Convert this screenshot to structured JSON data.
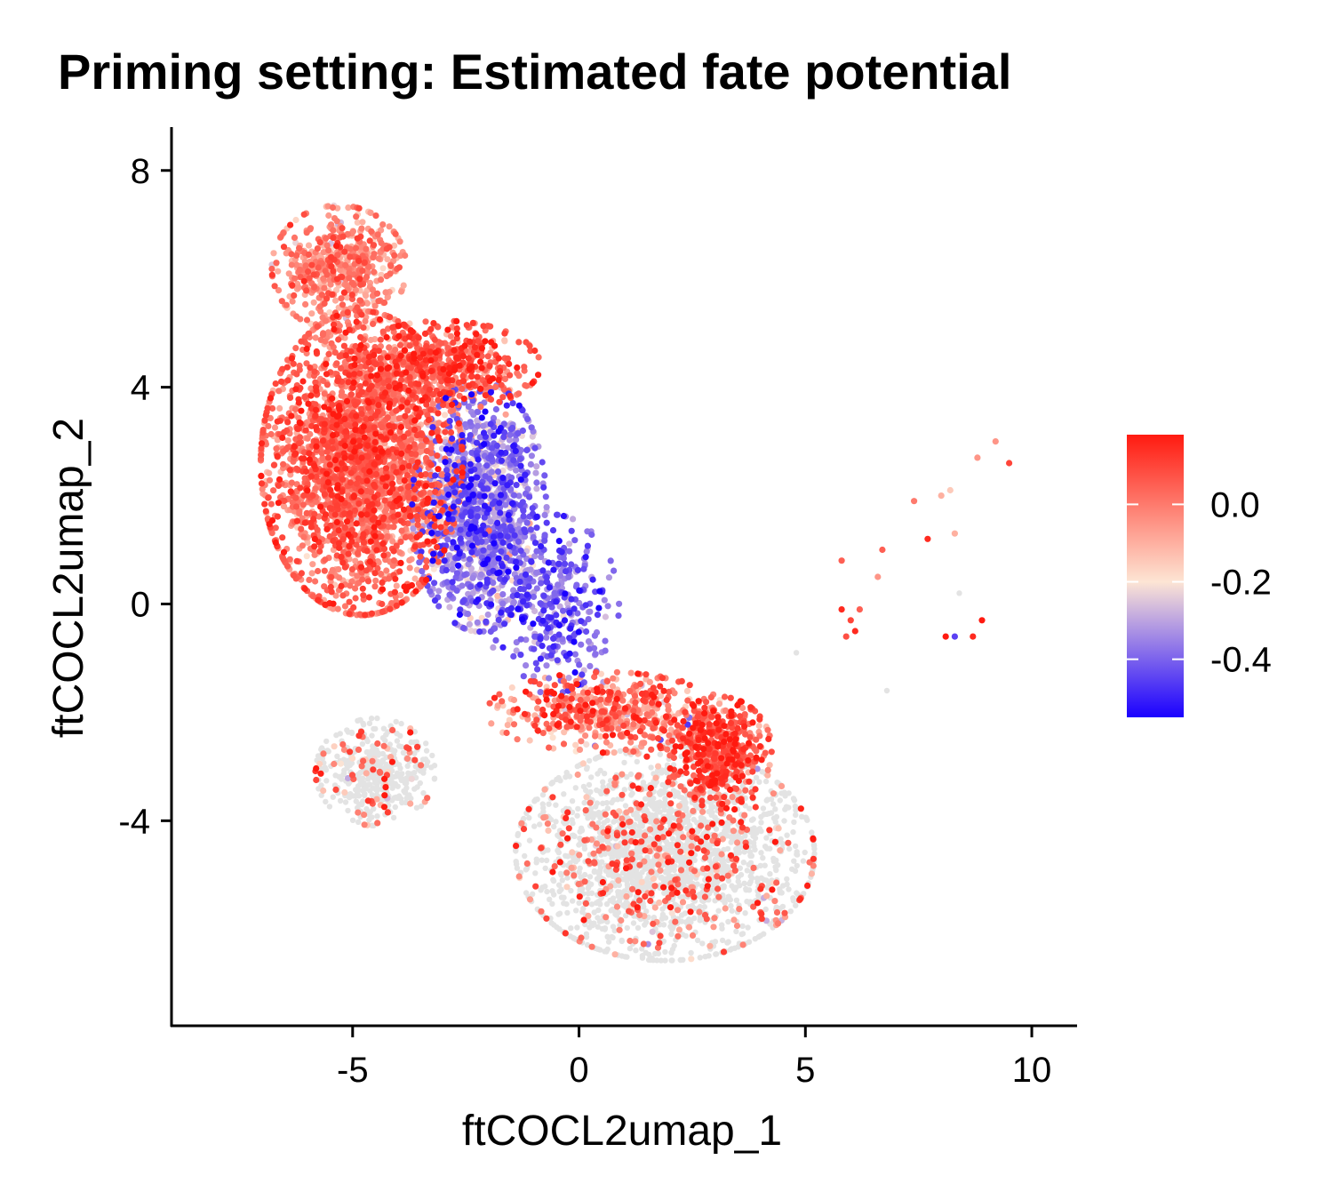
{
  "chart_data": {
    "type": "scatter",
    "title": "Priming setting: Estimated fate potential",
    "xlabel": "ftCOCL2umap_1",
    "ylabel": "ftCOCL2umap_2",
    "xlim": [
      -9,
      11
    ],
    "ylim": [
      -7.8,
      8.8
    ],
    "x_ticks": [
      -5,
      0,
      5,
      10
    ],
    "x_tick_labels": [
      "-5",
      "0",
      "5",
      "10"
    ],
    "y_ticks": [
      -4,
      0,
      4,
      8
    ],
    "y_tick_labels": [
      "-4",
      "0",
      "4",
      "8"
    ],
    "na_color": "#e3e3e3",
    "colorbar": {
      "min": -0.55,
      "max": 0.18,
      "mid": -0.2,
      "low_color": "#1a00ff",
      "mid_color": "#fde5d4",
      "high_color": "#ff1a10",
      "ticks": [
        0.0,
        -0.2,
        -0.4
      ],
      "tick_labels": [
        "0.0",
        "-0.2",
        "-0.4"
      ]
    },
    "grid": false,
    "legend_position": "right",
    "clusters": [
      {
        "region": "upper-left body",
        "cx": -4.8,
        "cy": 2.6,
        "sx": 1.35,
        "sy": 1.7,
        "value_mean": 0.02,
        "value_sd": 0.08,
        "share": 0.3
      },
      {
        "region": "upper-left top lobe",
        "cx": -5.3,
        "cy": 6.2,
        "sx": 0.9,
        "sy": 0.7,
        "value_mean": -0.03,
        "value_sd": 0.08,
        "share": 0.06
      },
      {
        "region": "center violet band",
        "cx": -2.2,
        "cy": 1.8,
        "sx": 0.9,
        "sy": 1.4,
        "value_mean": -0.35,
        "value_sd": 0.1,
        "share": 0.14
      },
      {
        "region": "upper-right ridge",
        "cx": -3.0,
        "cy": 4.4,
        "sx": 1.3,
        "sy": 0.5,
        "value_mean": 0.05,
        "value_sd": 0.09,
        "share": 0.06
      },
      {
        "region": "lower-left arm",
        "cx": -4.5,
        "cy": -3.1,
        "sx": 0.8,
        "sy": 0.6,
        "value_mean": null,
        "value_sd": 0,
        "share": 0.05
      },
      {
        "region": "lower-right cloud",
        "cx": 1.9,
        "cy": -4.6,
        "sx": 2.0,
        "sy": 1.2,
        "value_mean": null,
        "value_sd": 0,
        "share": 0.24
      },
      {
        "region": "lower-right orange patch",
        "cx": 3.1,
        "cy": -2.7,
        "sx": 0.7,
        "sy": 0.6,
        "value_mean": 0.07,
        "value_sd": 0.08,
        "share": 0.05
      },
      {
        "region": "bridge",
        "cx": 0.6,
        "cy": -2.0,
        "sx": 1.6,
        "sy": 0.45,
        "value_mean": -0.02,
        "value_sd": 0.12,
        "share": 0.06
      },
      {
        "region": "connector stream",
        "cx": -0.6,
        "cy": 0.0,
        "sx": 0.9,
        "sy": 1.0,
        "value_mean": -0.4,
        "value_sd": 0.08,
        "share": 0.04
      }
    ],
    "outlier_points": [
      {
        "x": 9.2,
        "y": 3.0,
        "v": -0.05
      },
      {
        "x": 8.8,
        "y": 2.7,
        "v": -0.05
      },
      {
        "x": 9.5,
        "y": 2.6,
        "v": 0.1
      },
      {
        "x": 7.4,
        "y": 1.9,
        "v": 0.0
      },
      {
        "x": 8.0,
        "y": 2.0,
        "v": -0.1
      },
      {
        "x": 8.2,
        "y": 2.1,
        "v": -0.15
      },
      {
        "x": 7.7,
        "y": 1.2,
        "v": 0.15
      },
      {
        "x": 8.3,
        "y": 1.3,
        "v": -0.1
      },
      {
        "x": 6.7,
        "y": 1.0,
        "v": 0.05
      },
      {
        "x": 5.8,
        "y": 0.8,
        "v": 0.05
      },
      {
        "x": 6.6,
        "y": 0.5,
        "v": -0.05
      },
      {
        "x": 8.3,
        "y": -0.6,
        "v": -0.45
      },
      {
        "x": 5.8,
        "y": -0.1,
        "v": 0.15
      },
      {
        "x": 6.0,
        "y": -0.3,
        "v": 0.1
      },
      {
        "x": 6.1,
        "y": -0.5,
        "v": 0.15
      },
      {
        "x": 6.2,
        "y": -0.1,
        "v": 0.05
      },
      {
        "x": 5.9,
        "y": -0.6,
        "v": 0.08
      },
      {
        "x": 8.9,
        "y": -0.3,
        "v": 0.18
      },
      {
        "x": 8.7,
        "y": -0.6,
        "v": 0.15
      },
      {
        "x": 8.1,
        "y": -0.6,
        "v": 0.18
      },
      {
        "x": 4.8,
        "y": -0.9,
        "v": null
      },
      {
        "x": 6.8,
        "y": -1.6,
        "v": null
      },
      {
        "x": 8.4,
        "y": 0.2,
        "v": null
      }
    ]
  }
}
